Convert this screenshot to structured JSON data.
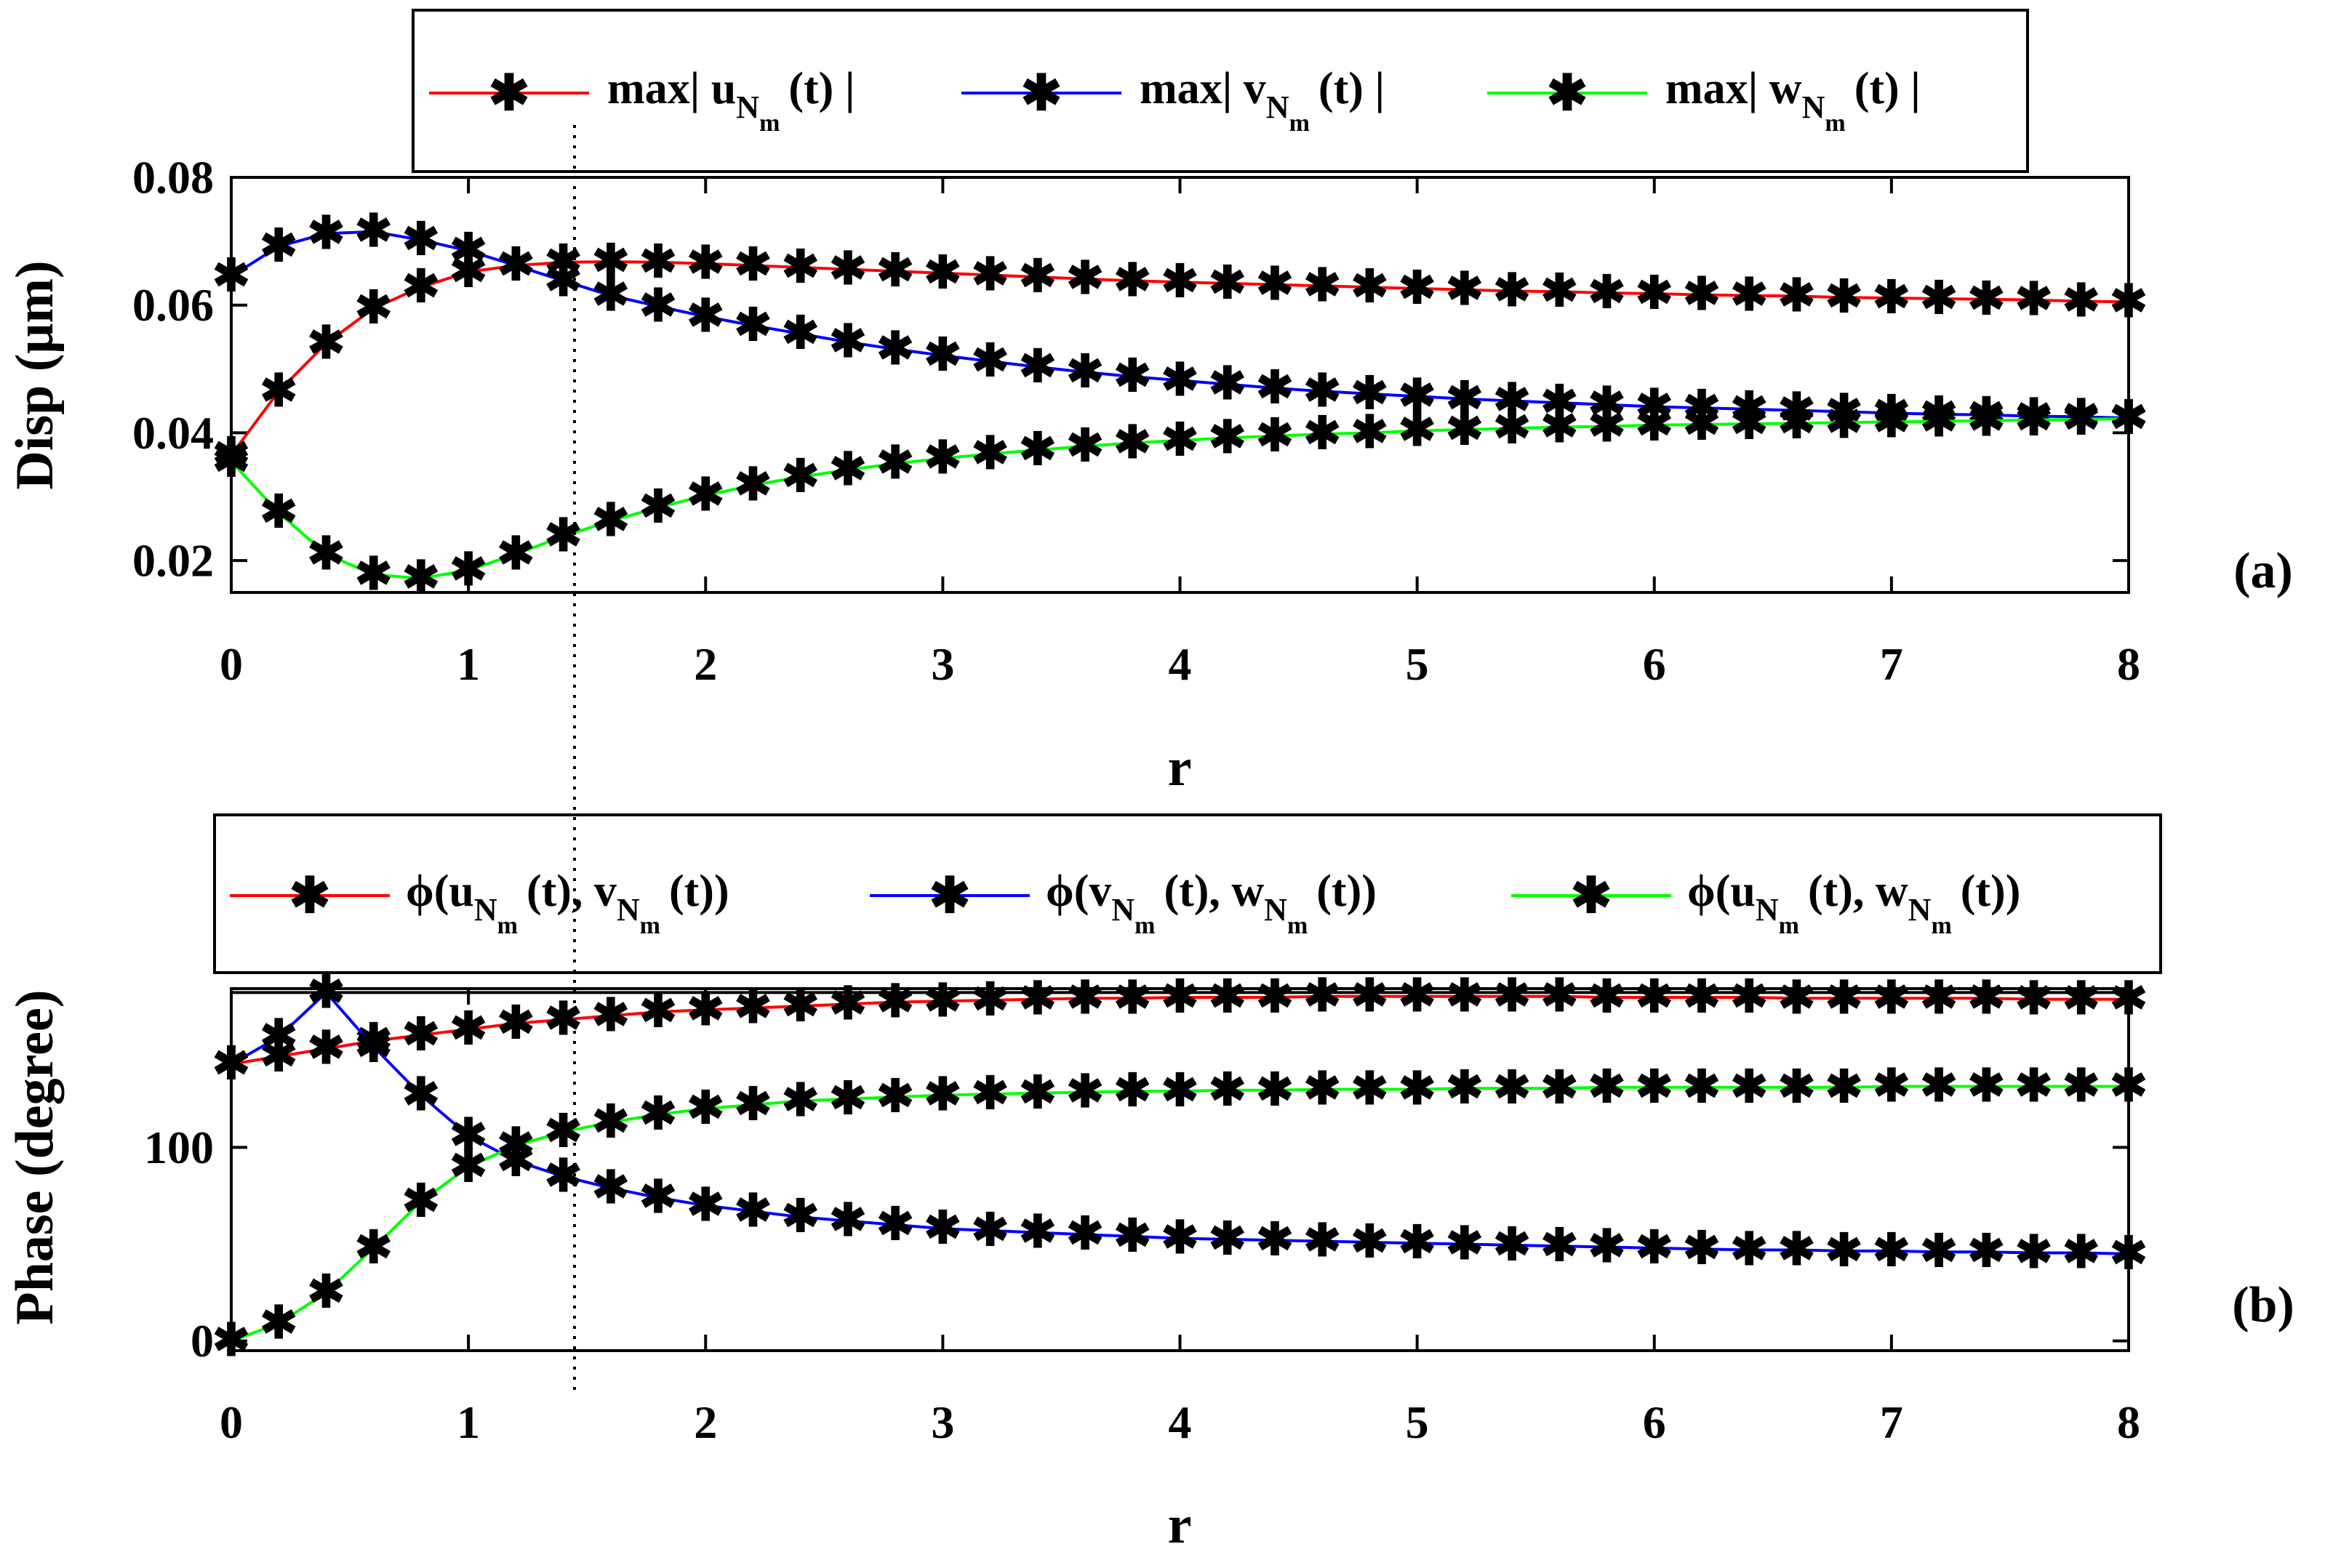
{
  "chart_data": [
    {
      "type": "line",
      "panel_tag": "(a)",
      "xlabel": "r",
      "ylabel": "Disp (μm)",
      "xlim": [
        0,
        8
      ],
      "ylim": [
        0.015,
        0.08
      ],
      "xticks": [
        "0",
        "1",
        "2",
        "3",
        "4",
        "5",
        "6",
        "7",
        "8"
      ],
      "xtick_values": [
        0,
        1,
        2,
        3,
        4,
        5,
        6,
        7,
        8
      ],
      "yticks": [
        "0.02",
        "0.04",
        "0.06",
        "0.08"
      ],
      "ytick_values": [
        0.02,
        0.04,
        0.06,
        0.08
      ],
      "legend": {
        "position": "top",
        "entries": [
          {
            "prefix": "max| u",
            "subscript": "N",
            "subsub": "m",
            "suffix": "(t) |"
          },
          {
            "prefix": "max| v",
            "subscript": "N",
            "subsub": "m",
            "suffix": "(t) |"
          },
          {
            "prefix": "max| w",
            "subscript": "N",
            "subsub": "m",
            "suffix": "(t) |"
          }
        ]
      },
      "x": [
        0,
        0.2,
        0.4,
        0.6,
        0.8,
        1.0,
        1.2,
        1.4,
        1.6,
        1.8,
        2.0,
        2.2,
        2.4,
        2.6,
        2.8,
        3.0,
        3.2,
        3.4,
        3.6,
        3.8,
        4.0,
        4.2,
        4.4,
        4.6,
        4.8,
        5.0,
        5.2,
        5.4,
        5.6,
        5.8,
        6.0,
        6.2,
        6.4,
        6.6,
        6.8,
        7.0,
        7.2,
        7.4,
        7.6,
        7.8,
        8.0
      ],
      "series": [
        {
          "name": "max| uNm(t) |",
          "color": "#ff0000",
          "values": [
            0.0365,
            0.0465,
            0.054,
            0.0595,
            0.0628,
            0.0652,
            0.0662,
            0.0667,
            0.0668,
            0.0667,
            0.0665,
            0.0662,
            0.0659,
            0.0656,
            0.0653,
            0.065,
            0.0647,
            0.0644,
            0.0641,
            0.0638,
            0.0636,
            0.0634,
            0.0632,
            0.063,
            0.0628,
            0.0626,
            0.0624,
            0.0622,
            0.0621,
            0.0619,
            0.0618,
            0.0616,
            0.0615,
            0.0614,
            0.0612,
            0.0611,
            0.061,
            0.0609,
            0.0608,
            0.0606,
            0.0605
          ]
        },
        {
          "name": "max| vNm(t) |",
          "color": "#0000ff",
          "values": [
            0.0645,
            0.0692,
            0.0712,
            0.0715,
            0.0702,
            0.0685,
            0.0662,
            0.0638,
            0.0615,
            0.0598,
            0.0582,
            0.0568,
            0.0555,
            0.0542,
            0.0531,
            0.0521,
            0.0512,
            0.0503,
            0.0495,
            0.0488,
            0.0482,
            0.0476,
            0.047,
            0.0465,
            0.0461,
            0.0457,
            0.0453,
            0.045,
            0.0447,
            0.0444,
            0.0441,
            0.0439,
            0.0437,
            0.0435,
            0.0433,
            0.0431,
            0.0429,
            0.0428,
            0.0426,
            0.0425,
            0.0423
          ]
        },
        {
          "name": "max| wNm(t) |",
          "color": "#00ff00",
          "values": [
            0.0355,
            0.0275,
            0.021,
            0.0178,
            0.0172,
            0.0185,
            0.021,
            0.0238,
            0.0262,
            0.0283,
            0.0302,
            0.0318,
            0.0331,
            0.0342,
            0.0352,
            0.036,
            0.0367,
            0.0373,
            0.0379,
            0.0384,
            0.0388,
            0.0392,
            0.0395,
            0.0398,
            0.04,
            0.0403,
            0.0405,
            0.0407,
            0.0409,
            0.041,
            0.0412,
            0.0413,
            0.0414,
            0.0415,
            0.0416,
            0.0417,
            0.0418,
            0.0419,
            0.042,
            0.0421,
            0.0422
          ]
        }
      ]
    },
    {
      "type": "line",
      "panel_tag": "(b)",
      "xlabel": "r",
      "ylabel": "Phase (degree)",
      "xlim": [
        0,
        8
      ],
      "ylim": [
        -5,
        182
      ],
      "xticks": [
        "0",
        "1",
        "2",
        "3",
        "4",
        "5",
        "6",
        "7",
        "8"
      ],
      "xtick_values": [
        0,
        1,
        2,
        3,
        4,
        5,
        6,
        7,
        8
      ],
      "yticks": [
        "0",
        "100"
      ],
      "ytick_values": [
        0,
        100
      ],
      "reference_line": 180,
      "legend": {
        "position": "top",
        "entries": [
          {
            "prefix": "ϕ(u",
            "subscript": "N",
            "subsub": "m",
            "middle": "(t), v",
            "subscript2": "N",
            "subsub2": "m",
            "suffix": "(t))"
          },
          {
            "prefix": "ϕ(v",
            "subscript": "N",
            "subsub": "m",
            "middle": "(t), w",
            "subscript2": "N",
            "subsub2": "m",
            "suffix": "(t))"
          },
          {
            "prefix": "ϕ(u",
            "subscript": "N",
            "subsub": "m",
            "middle": "(t), w",
            "subscript2": "N",
            "subsub2": "m",
            "suffix": "(t))"
          }
        ]
      },
      "x": [
        0,
        0.2,
        0.4,
        0.6,
        0.8,
        1.0,
        1.2,
        1.4,
        1.6,
        1.8,
        2.0,
        2.2,
        2.4,
        2.6,
        2.8,
        3.0,
        3.2,
        3.4,
        3.6,
        3.8,
        4.0,
        4.2,
        4.4,
        4.6,
        4.8,
        5.0,
        5.2,
        5.4,
        5.6,
        5.8,
        6.0,
        6.2,
        6.4,
        6.6,
        6.8,
        7.0,
        7.2,
        7.4,
        7.6,
        7.8,
        8.0
      ],
      "series": [
        {
          "name": "ϕ(uNm(t), vNm(t))",
          "color": "#ff0000",
          "values": [
            143,
            147,
            151,
            155,
            158,
            161,
            164,
            166,
            168,
            170,
            171,
            172,
            173,
            174,
            175,
            175.5,
            176,
            176.5,
            177,
            177,
            177.5,
            177.5,
            177.5,
            178,
            178,
            178,
            178,
            178,
            178,
            177.5,
            177.5,
            177.5,
            177.5,
            177,
            177,
            177,
            177,
            177,
            176.5,
            176.5,
            176.5
          ]
        },
        {
          "name": "ϕ(vNm(t), wNm(t))",
          "color": "#0000ff",
          "values": [
            143,
            157,
            180,
            152,
            127,
            106,
            93,
            85,
            79,
            74,
            70,
            67,
            64,
            62,
            60,
            58,
            57,
            56,
            55,
            54,
            53,
            52.5,
            52,
            51.5,
            51,
            50.5,
            50,
            49.5,
            49,
            48.5,
            48,
            47.5,
            47,
            47,
            46.5,
            46.5,
            46,
            46,
            45.5,
            45.5,
            45
          ]
        },
        {
          "name": "ϕ(uNm(t), wNm(t))",
          "color": "#00ff00",
          "values": [
            0,
            9,
            25,
            48,
            72,
            90,
            101,
            108,
            113,
            117,
            120,
            122,
            124,
            125,
            126,
            127,
            127.5,
            128,
            128.5,
            129,
            129,
            129.5,
            129.5,
            130,
            130,
            130,
            130.5,
            130.5,
            130.5,
            131,
            131,
            131,
            131,
            131,
            131,
            131.5,
            131.5,
            131.5,
            131.5,
            131.5,
            131.5
          ]
        }
      ]
    }
  ]
}
